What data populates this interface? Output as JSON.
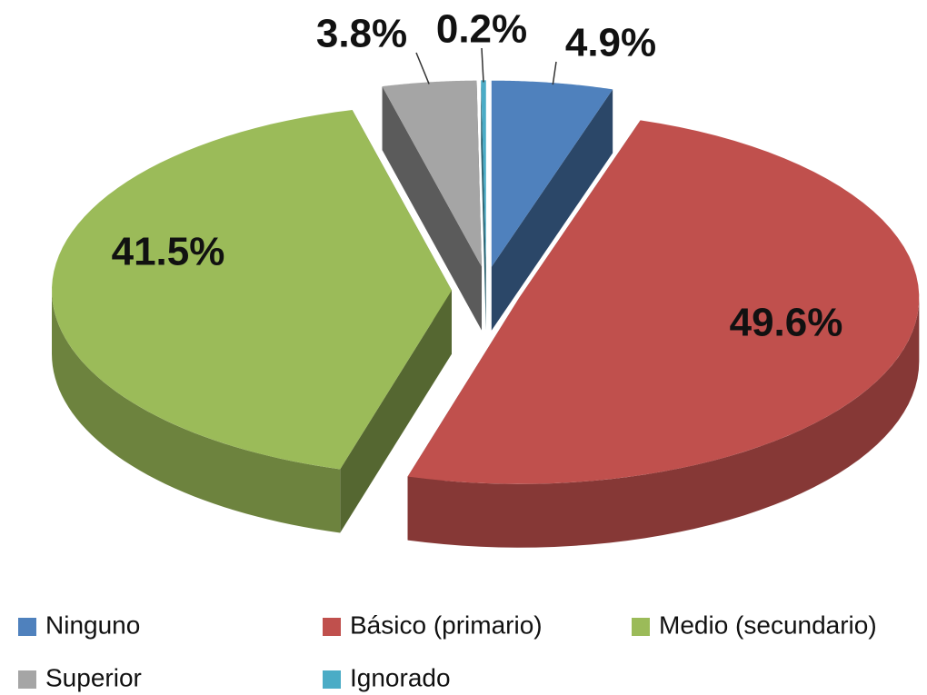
{
  "chart_data": {
    "type": "pie3d",
    "categories": [
      "Ninguno",
      "Básico (primario)",
      "Medio (secundario)",
      "Superior",
      "Ignorado"
    ],
    "values": [
      4.9,
      49.6,
      41.5,
      3.8,
      0.2
    ],
    "value_labels": [
      "4.9%",
      "49.6%",
      "41.5%",
      "3.8%",
      "0.2%"
    ],
    "colors": [
      "#4f81bd",
      "#c0504d",
      "#9bbb59",
      "#a5a5a5",
      "#4bacc6"
    ],
    "legend": "bottom"
  }
}
